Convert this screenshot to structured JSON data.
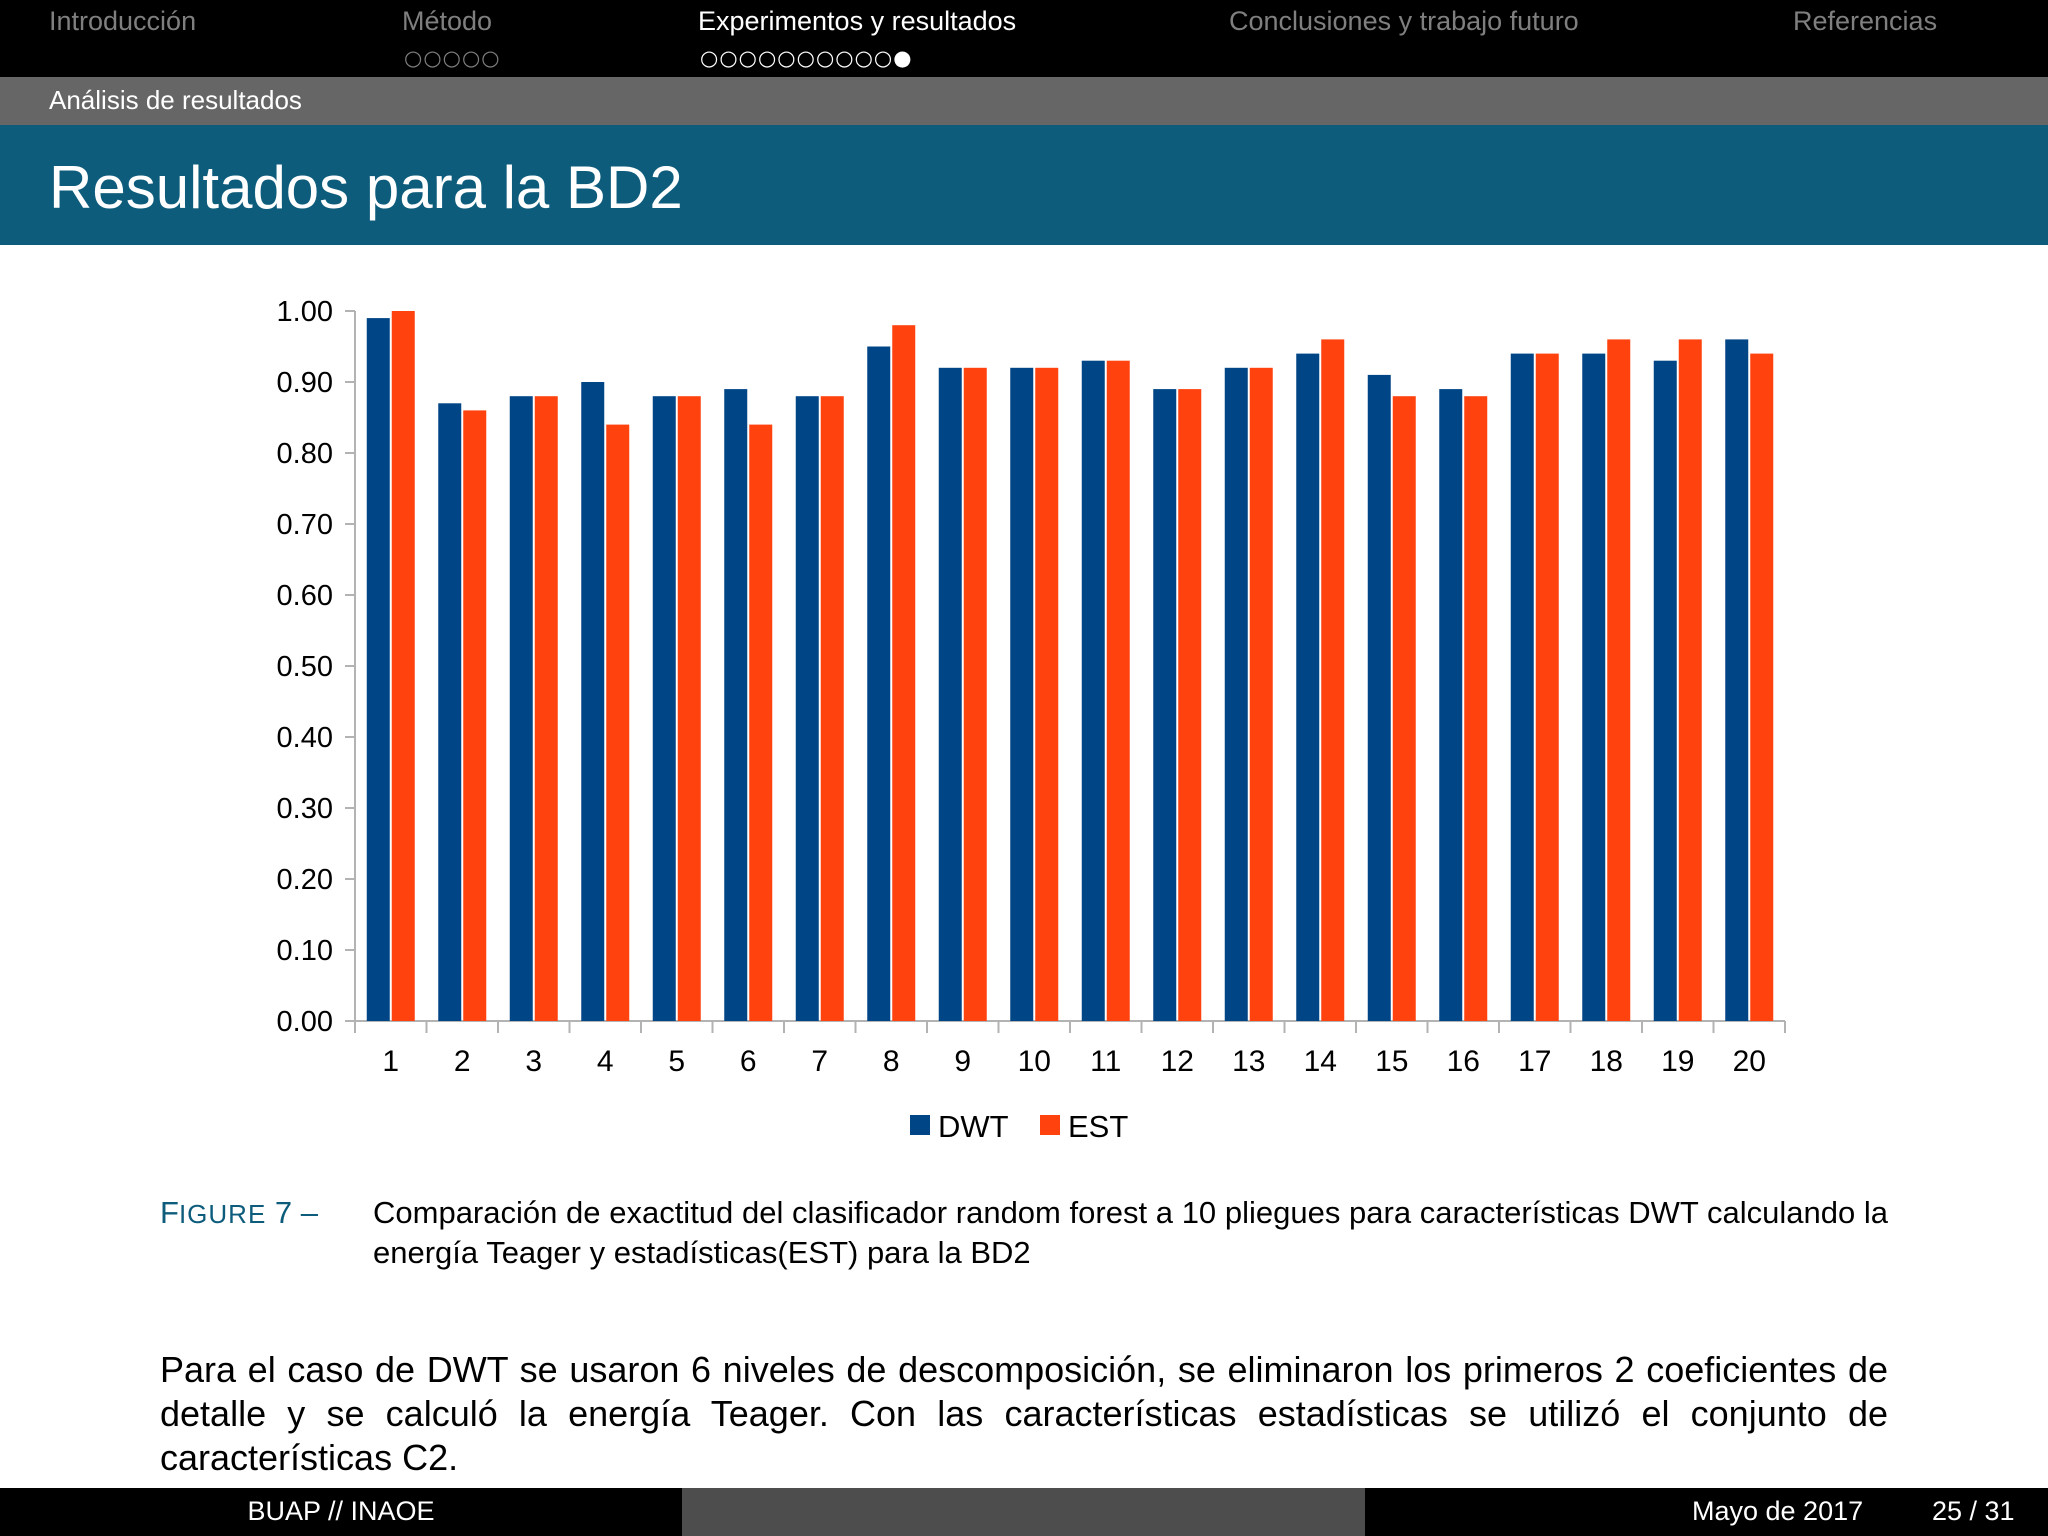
{
  "nav": {
    "sections": [
      {
        "label": "Introducción",
        "dots": "",
        "active": false
      },
      {
        "label": "Método",
        "dots": "○○○○○",
        "active": false
      },
      {
        "label": "Experimentos y resultados",
        "dots": "○○○○○○○○○○●",
        "active": true
      },
      {
        "label": "Conclusiones y trabajo futuro",
        "dots": "",
        "active": false
      },
      {
        "label": "Referencias",
        "dots": "",
        "active": false
      }
    ]
  },
  "subsection": "Análisis de resultados",
  "frame_title": "Resultados para la BD2",
  "chart_data": {
    "type": "bar",
    "categories": [
      "1",
      "2",
      "3",
      "4",
      "5",
      "6",
      "7",
      "8",
      "9",
      "10",
      "11",
      "12",
      "13",
      "14",
      "15",
      "16",
      "17",
      "18",
      "19",
      "20"
    ],
    "series": [
      {
        "name": "DWT",
        "color": "#004586",
        "values": [
          0.99,
          0.87,
          0.88,
          0.9,
          0.88,
          0.89,
          0.88,
          0.95,
          0.92,
          0.92,
          0.93,
          0.89,
          0.92,
          0.94,
          0.91,
          0.89,
          0.94,
          0.94,
          0.93,
          0.96
        ]
      },
      {
        "name": "EST",
        "color": "#ff420e",
        "values": [
          1.0,
          0.86,
          0.88,
          0.84,
          0.88,
          0.84,
          0.88,
          0.98,
          0.92,
          0.92,
          0.93,
          0.89,
          0.92,
          0.96,
          0.88,
          0.88,
          0.94,
          0.96,
          0.96,
          0.94
        ]
      }
    ],
    "yticks": [
      "0.00",
      "0.10",
      "0.20",
      "0.30",
      "0.40",
      "0.50",
      "0.60",
      "0.70",
      "0.80",
      "0.90",
      "1.00"
    ],
    "ylim": [
      0,
      1.0
    ],
    "legend_position": "bottom",
    "grid": false
  },
  "caption": {
    "label_first": "F",
    "label_rest": "IGURE",
    "number": "7",
    "dash": "–",
    "text": "Comparación de exactitud del clasificador random forest a 10 pliegues para características DWT calculando la energía Teager y estadísticas(EST) para la BD2"
  },
  "body": "Para el caso de DWT se usaron 6 niveles de descomposición, se eliminaron los primeros 2 coeficientes de detalle y se calculó la energía Teager. Con las características estadísticas se utilizó el conjunto de características C2.",
  "footer": {
    "author": "BUAP // INAOE",
    "date": "Mayo de 2017",
    "page": "25 / 31"
  }
}
